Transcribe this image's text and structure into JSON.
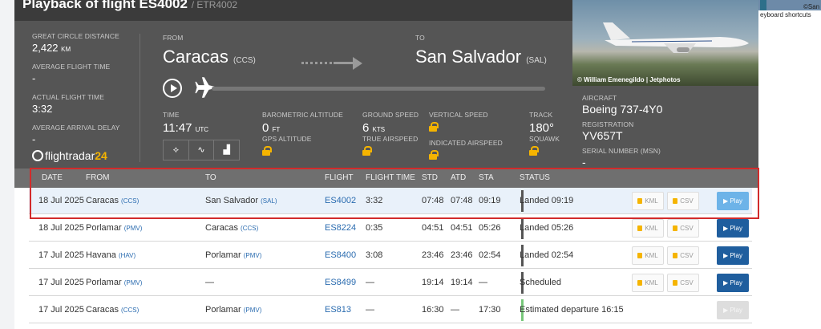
{
  "page": {
    "title": "Playback of flight ES4002",
    "subtitle": "/ ETR4002",
    "keyboard_shortcuts": "eyboard shortcuts",
    "corner_text": "©San"
  },
  "stats": {
    "great_circle_label": "Great circle distance",
    "great_circle_value": "2,422",
    "great_circle_unit": "KM",
    "avg_time_label": "Average flight time",
    "avg_time_value": "-",
    "actual_time_label": "Actual flight time",
    "actual_time_value": "3:32",
    "avg_delay_label": "Average arrival delay",
    "avg_delay_value": "-"
  },
  "brand": {
    "name": "flightradar",
    "num": "24"
  },
  "route": {
    "from_label": "From",
    "from_city": "Caracas",
    "from_code": "(CCS)",
    "to_label": "To",
    "to_city": "San Salvador",
    "to_code": "(SAL)"
  },
  "metrics": {
    "time_label": "Time",
    "time_value": "11:47",
    "time_unit": "UTC",
    "baro_label": "Barometric altitude",
    "baro_value": "0",
    "baro_unit": "FT",
    "gps_label": "GPS altitude",
    "ground_label": "Ground speed",
    "ground_value": "6",
    "ground_unit": "KTS",
    "true_label": "True airspeed",
    "vertical_label": "Vertical speed",
    "indicated_label": "Indicated airspeed",
    "track_label": "Track",
    "track_value": "180°",
    "squawk_label": "Squawk"
  },
  "view_buttons": [
    "⟡",
    "∿",
    "▟"
  ],
  "aircraft": {
    "photo_credit": "© William Emenegildo | Jetphotos",
    "aircraft_label": "Aircraft",
    "aircraft_value": "Boeing 737-4Y0",
    "registration_label": "Registration",
    "registration_value": "YV657T",
    "serial_label": "Serial number (MSN)",
    "serial_value": "-"
  },
  "table": {
    "headers": [
      "Date",
      "From",
      "To",
      "Flight",
      "Flight time",
      "STD",
      "ATD",
      "STA",
      "Status"
    ],
    "kml_label": "KML",
    "csv_label": "CSV",
    "play_label": "Play",
    "rows": [
      {
        "date": "18 Jul 2025",
        "from": "Caracas",
        "from_code": "(CCS)",
        "to": "San Salvador",
        "to_code": "(SAL)",
        "flight": "ES4002",
        "time": "3:32",
        "std": "07:48",
        "atd": "07:48",
        "sta": "09:19",
        "status": "Landed 09:19"
      },
      {
        "date": "18 Jul 2025",
        "from": "Porlamar",
        "from_code": "(PMV)",
        "to": "Caracas",
        "to_code": "(CCS)",
        "flight": "ES8224",
        "time": "0:35",
        "std": "04:51",
        "atd": "04:51",
        "sta": "05:26",
        "status": "Landed 05:26"
      },
      {
        "date": "17 Jul 2025",
        "from": "Havana",
        "from_code": "(HAV)",
        "to": "Porlamar",
        "to_code": "(PMV)",
        "flight": "ES8400",
        "time": "3:08",
        "std": "23:46",
        "atd": "23:46",
        "sta": "02:54",
        "status": "Landed 02:54"
      },
      {
        "date": "17 Jul 2025",
        "from": "Porlamar",
        "from_code": "(PMV)",
        "to": "—",
        "to_code": "",
        "flight": "ES8499",
        "time": "—",
        "std": "19:14",
        "atd": "19:14",
        "sta": "—",
        "status": "Scheduled"
      },
      {
        "date": "17 Jul 2025",
        "from": "Caracas",
        "from_code": "(CCS)",
        "to": "Porlamar",
        "to_code": "(PMV)",
        "flight": "ES813",
        "time": "—",
        "std": "16:30",
        "atd": "—",
        "sta": "17:30",
        "status": "Estimated departure 16:15"
      }
    ]
  }
}
